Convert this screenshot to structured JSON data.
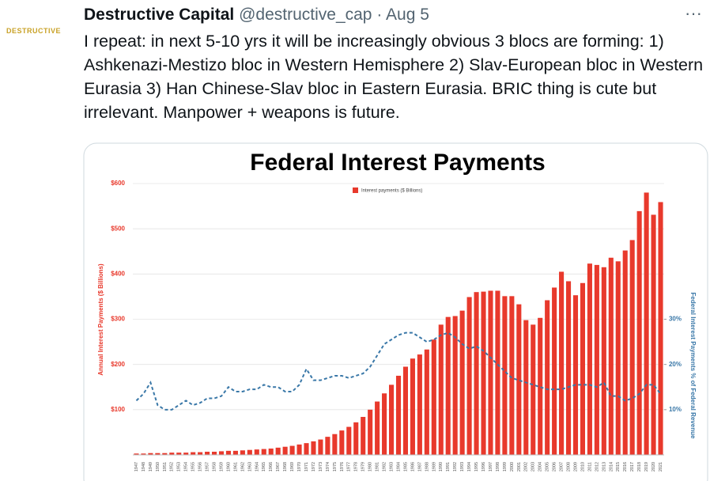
{
  "tweet": {
    "avatar_text": "DESTRUCTIVE",
    "name": "Destructive Capital",
    "handle": "@destructive_cap",
    "separator": "·",
    "date": "Aug 5",
    "more": "···",
    "text": "I repeat: in next 5-10 yrs it will be increasingly obvious 3 blocs are forming: 1) Ashkenazi-Mestizo bloc in Western Hemisphere 2) Slav-European bloc in Western Eurasia 3) Han Chinese-Slav bloc in Eastern Eurasia. BRIC thing is cute but irrelevant. Manpower + weapons is future."
  },
  "chart_data": {
    "type": "bar-line",
    "title": "Federal Interest Payments",
    "y_label": "Annual Interest Payments ($ Billions)",
    "y2_label": "Federal Interest Payments % of Federal Revenue",
    "categories": [
      "1947",
      "1948",
      "1949",
      "1950",
      "1951",
      "1952",
      "1953",
      "1954",
      "1955",
      "1956",
      "1957",
      "1958",
      "1959",
      "1960",
      "1961",
      "1962",
      "1963",
      "1964",
      "1965",
      "1966",
      "1967",
      "1968",
      "1969",
      "1970",
      "1971",
      "1972",
      "1973",
      "1974",
      "1975",
      "1976",
      "1977",
      "1978",
      "1979",
      "1980",
      "1981",
      "1982",
      "1983",
      "1984",
      "1985",
      "1986",
      "1987",
      "1988",
      "1989",
      "1990",
      "1991",
      "1992",
      "1993",
      "1994",
      "1995",
      "1996",
      "1997",
      "1998",
      "1999",
      "2000",
      "2001",
      "2002",
      "2003",
      "2004",
      "2005",
      "2006",
      "2007",
      "2008",
      "2009",
      "2010",
      "2011",
      "2012",
      "2013",
      "2014",
      "2015",
      "2016",
      "2017",
      "2018",
      "2019",
      "2020",
      "2021"
    ],
    "series": [
      {
        "name": "Interest payments ($ Billions)",
        "color": "#e8392c",
        "axis": "y",
        "values": [
          3,
          3,
          4,
          4,
          4,
          5,
          5,
          5,
          6,
          6,
          7,
          7,
          8,
          9,
          9,
          10,
          11,
          12,
          13,
          14,
          16,
          18,
          20,
          23,
          26,
          30,
          34,
          40,
          46,
          54,
          62,
          72,
          84,
          100,
          118,
          136,
          155,
          175,
          195,
          213,
          222,
          233,
          255,
          288,
          305,
          307,
          319,
          349,
          360,
          361,
          363,
          363,
          351,
          351,
          333,
          298,
          288,
          303,
          342,
          370,
          405,
          384,
          353,
          380,
          423,
          420,
          415,
          436,
          428,
          452,
          475,
          539,
          580,
          531,
          559
        ]
      },
      {
        "color": "#3a78a8",
        "axis": "y2",
        "dashed": true,
        "values": [
          12,
          13.5,
          16,
          11,
          10,
          10,
          11,
          12,
          11,
          11.5,
          12.5,
          12.5,
          13,
          15,
          14,
          14,
          14.5,
          14.5,
          15.5,
          15,
          15,
          14,
          14,
          15.5,
          19,
          16.5,
          16.5,
          17,
          17.5,
          17.5,
          17,
          17.5,
          18,
          19.5,
          22,
          24.5,
          25.5,
          26.5,
          27,
          27,
          26,
          25,
          25.5,
          26.5,
          27,
          26,
          24.5,
          23.5,
          24,
          23,
          21.5,
          20,
          18.5,
          17,
          16.5,
          16,
          15.5,
          15,
          14.5,
          14.5,
          14.5,
          15,
          15.5,
          15.5,
          15.5,
          15,
          16,
          13,
          13,
          12,
          12.5,
          13.5,
          15.5,
          15.5,
          13.5
        ]
      }
    ],
    "ylim": [
      0,
      600
    ],
    "yticks": [
      {
        "value": 100,
        "label": "$100"
      },
      {
        "value": 200,
        "label": "$200"
      },
      {
        "value": 300,
        "label": "$300"
      },
      {
        "value": 400,
        "label": "$400"
      },
      {
        "value": 500,
        "label": "$500"
      },
      {
        "value": 600,
        "label": "$600"
      }
    ],
    "y2lim": [
      0,
      60
    ],
    "y2ticks": [
      {
        "value": 10,
        "label": "10%"
      },
      {
        "value": 20,
        "label": "20%"
      },
      {
        "value": 30,
        "label": "30%"
      }
    ],
    "grid": true
  }
}
